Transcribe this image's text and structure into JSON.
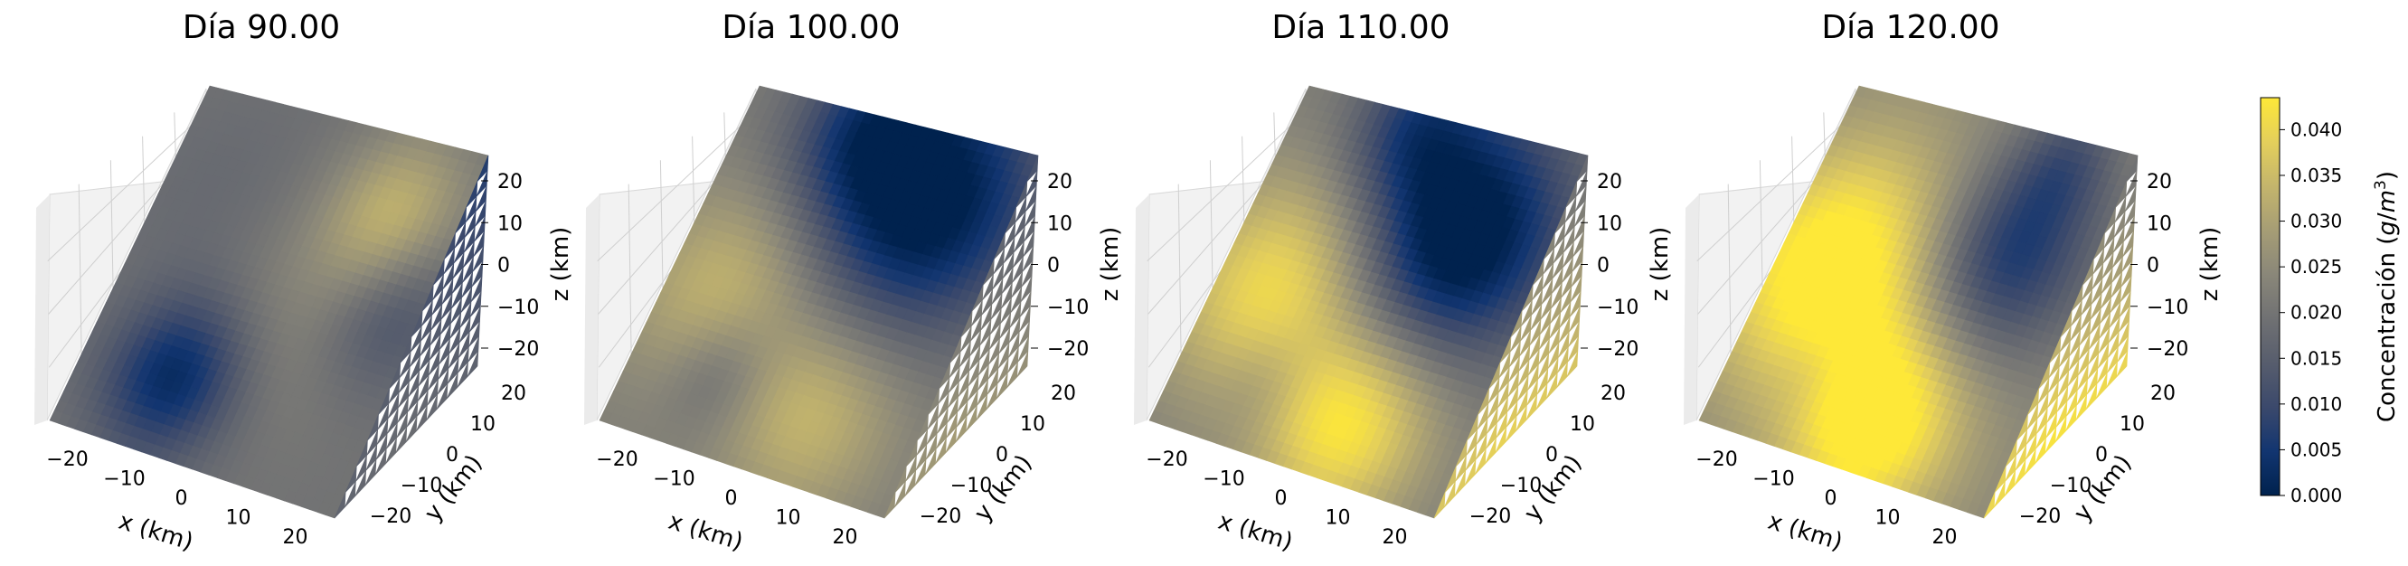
{
  "figure": {
    "colormap_name": "cividis",
    "colormap_stops": [
      "#00224e",
      "#123570",
      "#3b496c",
      "#575d6d",
      "#707173",
      "#8a8779",
      "#a69d75",
      "#c4b56c",
      "#e4cf5b",
      "#fee838"
    ]
  },
  "chart_data": [
    {
      "type": "heatmap",
      "title": "Día 90.00",
      "xlabel": "x (km)",
      "ylabel": "y (km)",
      "zlabel": "z (km)",
      "xlim": [
        -25,
        25
      ],
      "ylim": [
        -25,
        25
      ],
      "zlim": [
        -25,
        25
      ],
      "xticks": [
        "−20",
        "−10",
        "0",
        "10",
        "20"
      ],
      "yticks": [
        "−20",
        "−10",
        "0",
        "10",
        "20"
      ],
      "zticks": [
        "20",
        "10",
        "0",
        "−10",
        "−20"
      ],
      "base_level": 0.45,
      "blobs": [
        {
          "u": 0.32,
          "v": 0.78,
          "r": 0.16,
          "a": -0.42
        },
        {
          "u": 0.78,
          "v": 0.22,
          "r": 0.16,
          "a": 0.32
        },
        {
          "u": 0.9,
          "v": 0.45,
          "r": 0.15,
          "a": -0.2
        },
        {
          "u": 0.55,
          "v": 0.58,
          "r": 0.22,
          "a": 0.1
        },
        {
          "u": 0.2,
          "v": 0.3,
          "r": 0.22,
          "a": -0.05
        }
      ],
      "side_level": 0.4
    },
    {
      "type": "heatmap",
      "title": "Día 100.00",
      "xlabel": "x (km)",
      "ylabel": "y (km)",
      "zlabel": "z (km)",
      "xlim": [
        -25,
        25
      ],
      "ylim": [
        -25,
        25
      ],
      "zlim": [
        -25,
        25
      ],
      "xticks": [
        "−20",
        "−10",
        "0",
        "10",
        "20"
      ],
      "yticks": [
        "−20",
        "−10",
        "0",
        "10",
        "20"
      ],
      "zticks": [
        "20",
        "10",
        "0",
        "−10",
        "−20"
      ],
      "base_level": 0.5,
      "blobs": [
        {
          "u": 0.72,
          "v": 0.2,
          "r": 0.26,
          "a": -0.55
        },
        {
          "u": 0.4,
          "v": 0.05,
          "r": 0.18,
          "a": -0.3
        },
        {
          "u": 0.3,
          "v": 0.78,
          "r": 0.12,
          "a": -0.18
        },
        {
          "u": 0.2,
          "v": 0.55,
          "r": 0.22,
          "a": 0.28
        },
        {
          "u": 0.65,
          "v": 0.8,
          "r": 0.2,
          "a": 0.28
        }
      ],
      "side_level": 0.62
    },
    {
      "type": "heatmap",
      "title": "Día 110.00",
      "xlabel": "x (km)",
      "ylabel": "y (km)",
      "zlabel": "z (km)",
      "xlim": [
        -25,
        25
      ],
      "ylim": [
        -25,
        25
      ],
      "zlim": [
        -25,
        25
      ],
      "xticks": [
        "−20",
        "−10",
        "0",
        "10",
        "20"
      ],
      "yticks": [
        "−20",
        "−10",
        "0",
        "10",
        "20"
      ],
      "zticks": [
        "20",
        "10",
        "0",
        "−10",
        "−20"
      ],
      "base_level": 0.5,
      "blobs": [
        {
          "u": 0.7,
          "v": 0.3,
          "r": 0.24,
          "a": -0.62
        },
        {
          "u": 0.4,
          "v": 0.04,
          "r": 0.16,
          "a": -0.3
        },
        {
          "u": 0.3,
          "v": 0.8,
          "r": 0.11,
          "a": -0.12
        },
        {
          "u": 0.2,
          "v": 0.55,
          "r": 0.24,
          "a": 0.45
        },
        {
          "u": 0.62,
          "v": 0.84,
          "r": 0.2,
          "a": 0.48
        }
      ],
      "side_level": 0.85
    },
    {
      "type": "heatmap",
      "title": "Día 120.00",
      "xlabel": "x (km)",
      "ylabel": "y (km)",
      "zlabel": "z (km)",
      "xlim": [
        -25,
        25
      ],
      "ylim": [
        -25,
        25
      ],
      "zlim": [
        -25,
        25
      ],
      "xticks": [
        "−20",
        "−10",
        "0",
        "10",
        "20"
      ],
      "yticks": [
        "−20",
        "−10",
        "0",
        "10",
        "20"
      ],
      "zticks": [
        "20",
        "10",
        "0",
        "−10",
        "−20"
      ],
      "base_level": 0.55,
      "blobs": [
        {
          "u": 0.72,
          "v": 0.35,
          "r": 0.2,
          "a": -0.45
        },
        {
          "u": 0.78,
          "v": 0.06,
          "r": 0.12,
          "a": -0.2
        },
        {
          "u": 0.2,
          "v": 0.5,
          "r": 0.26,
          "a": 0.55
        },
        {
          "u": 0.55,
          "v": 0.86,
          "r": 0.2,
          "a": 0.5
        },
        {
          "u": 0.28,
          "v": 0.78,
          "r": 0.1,
          "a": -0.1
        }
      ],
      "side_level": 0.92
    }
  ],
  "colorbar": {
    "label": "Concentración (g/m³)",
    "label_main": "Concentración (",
    "label_unit_g": "g",
    "label_unit_slash": "/",
    "label_unit_m": "m",
    "label_unit_exp": "3",
    "label_close": ")",
    "min": 0.0,
    "max": 0.0435,
    "ticks": [
      0.0,
      0.005,
      0.01,
      0.015,
      0.02,
      0.025,
      0.03,
      0.035,
      0.04
    ],
    "tick_labels": [
      "0.000",
      "0.005",
      "0.010",
      "0.015",
      "0.020",
      "0.025",
      "0.030",
      "0.035",
      "0.040"
    ]
  }
}
